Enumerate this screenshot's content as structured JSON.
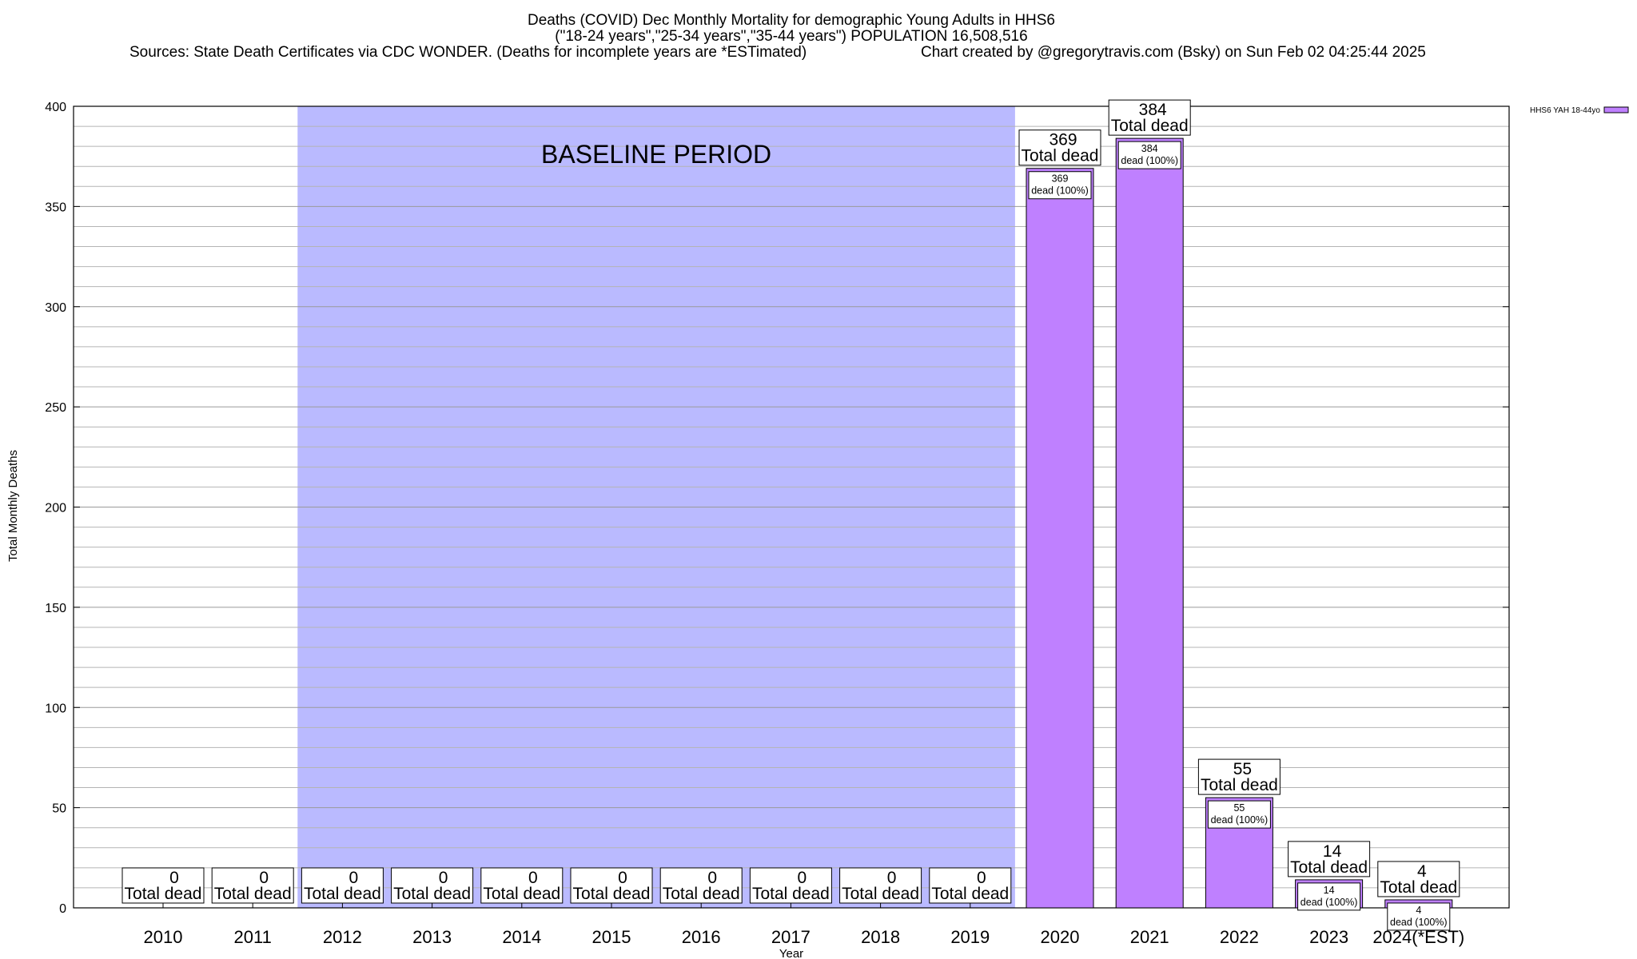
{
  "header": {
    "title_line1": "Deaths (COVID) Dec Monthly Mortality for demographic Young Adults in HHS6",
    "title_line2": "(\"18-24 years\",\"25-34 years\",\"35-44 years\") POPULATION 16,508,516",
    "sources": "Sources: State Death Certificates via CDC WONDER. (Deaths for incomplete years are *ESTimated)",
    "credit": "Chart created by @gregorytravis.com (Bsky) on Sun Feb 02 04:25:44 2025"
  },
  "chart_data": {
    "type": "bar",
    "title": "Deaths (COVID) Dec Monthly Mortality for demographic Young Adults in HHS6",
    "xlabel": "Year",
    "ylabel": "Total Monthly Deaths",
    "ylim": [
      0,
      400
    ],
    "yticks": [
      0,
      50,
      100,
      150,
      200,
      250,
      300,
      350,
      400
    ],
    "grid": true,
    "legend_position": "top-right",
    "baseline_label": "BASELINE PERIOD",
    "baseline_range": [
      "2012",
      "2019"
    ],
    "categories": [
      "2010",
      "2011",
      "2012",
      "2013",
      "2014",
      "2015",
      "2016",
      "2017",
      "2018",
      "2019",
      "2020",
      "2021",
      "2022",
      "2023",
      "2024(*EST)"
    ],
    "series": [
      {
        "name": "HHS6 YAH 18-44yo",
        "color": "#bf80ff",
        "values": [
          0,
          0,
          0,
          0,
          0,
          0,
          0,
          0,
          0,
          0,
          369,
          384,
          55,
          14,
          4
        ]
      }
    ],
    "total_label_suffix": "Total dead",
    "inner_label_suffix": "dead (100%)",
    "colors": {
      "baseline_shade": "#babaff",
      "bar_fill": "#bf80ff",
      "grid": "#b4b4b4"
    }
  }
}
